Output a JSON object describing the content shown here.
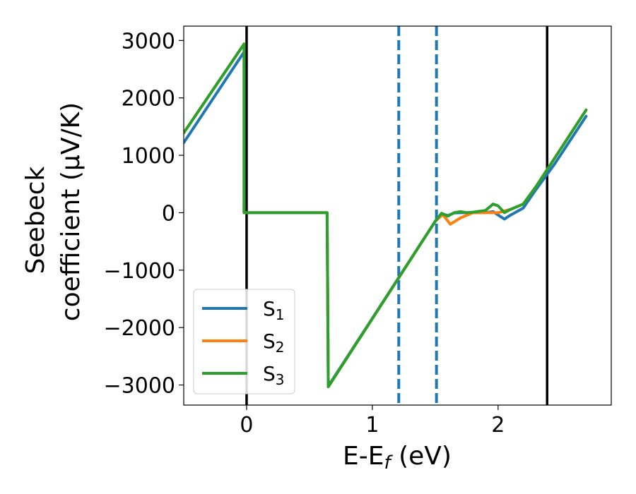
{
  "chart_data": {
    "type": "line",
    "xlabel_main": "E-E",
    "xlabel_sub": "f",
    "xlabel_unit": " (eV)",
    "ylabel_line1": "Seebeck",
    "ylabel_line2": "coefficient  (μV/K)",
    "xlim": [
      -0.5,
      2.9
    ],
    "ylim": [
      -3350,
      3250
    ],
    "x_ticks": [
      0,
      1,
      2
    ],
    "y_ticks": [
      -3000,
      -2000,
      -1000,
      0,
      1000,
      2000,
      3000
    ],
    "x_tick_labels": [
      "0",
      "1",
      "2"
    ],
    "y_tick_labels": [
      "−3000",
      "−2000",
      "−1000",
      "0",
      "1000",
      "2000",
      "3000"
    ],
    "grid": false,
    "legend_position": "lower-left",
    "vertical_lines": [
      {
        "x": 0.0,
        "style": "solid",
        "color": "#000000"
      },
      {
        "x": 1.21,
        "style": "dashed",
        "color": "#1f77b4"
      },
      {
        "x": 1.51,
        "style": "dashed",
        "color": "#1f77b4"
      },
      {
        "x": 2.39,
        "style": "solid",
        "color": "#000000"
      }
    ],
    "series": [
      {
        "name": "S",
        "subscript": "1",
        "color": "#1f77b4",
        "points": [
          [
            -0.5,
            1220
          ],
          [
            -0.02,
            2800
          ],
          [
            -0.02,
            0
          ],
          [
            0.64,
            0
          ],
          [
            0.65,
            -3020
          ],
          [
            1.5,
            -150
          ],
          [
            1.56,
            -20
          ],
          [
            1.6,
            -50
          ],
          [
            1.65,
            -5
          ],
          [
            1.7,
            0
          ],
          [
            1.8,
            0
          ],
          [
            1.9,
            0
          ],
          [
            1.96,
            20
          ],
          [
            2.0,
            -40
          ],
          [
            2.05,
            -110
          ],
          [
            2.1,
            -40
          ],
          [
            2.2,
            80
          ],
          [
            2.3,
            400
          ],
          [
            2.45,
            850
          ],
          [
            2.7,
            1680
          ]
        ]
      },
      {
        "name": "S",
        "subscript": "2",
        "color": "#ff7f0e",
        "points": [
          [
            -0.5,
            1390
          ],
          [
            -0.02,
            2940
          ],
          [
            -0.02,
            0
          ],
          [
            0.64,
            0
          ],
          [
            0.65,
            -3030
          ],
          [
            1.5,
            -150
          ],
          [
            1.56,
            -30
          ],
          [
            1.62,
            -200
          ],
          [
            1.7,
            -90
          ],
          [
            1.8,
            0
          ],
          [
            1.9,
            0
          ],
          [
            2.0,
            0
          ],
          [
            2.1,
            60
          ],
          [
            2.2,
            150
          ],
          [
            2.3,
            450
          ],
          [
            2.45,
            950
          ],
          [
            2.7,
            1790
          ]
        ]
      },
      {
        "name": "S",
        "subscript": "3",
        "color": "#2ca02c",
        "points": [
          [
            -0.5,
            1390
          ],
          [
            -0.02,
            2940
          ],
          [
            -0.02,
            0
          ],
          [
            0.64,
            0
          ],
          [
            0.65,
            -3030
          ],
          [
            1.5,
            -150
          ],
          [
            1.55,
            -10
          ],
          [
            1.6,
            -60
          ],
          [
            1.65,
            0
          ],
          [
            1.7,
            20
          ],
          [
            1.75,
            0
          ],
          [
            1.8,
            10
          ],
          [
            1.9,
            40
          ],
          [
            1.96,
            150
          ],
          [
            2.0,
            120
          ],
          [
            2.05,
            0
          ],
          [
            2.1,
            60
          ],
          [
            2.2,
            150
          ],
          [
            2.3,
            450
          ],
          [
            2.45,
            950
          ],
          [
            2.7,
            1790
          ]
        ]
      }
    ]
  }
}
